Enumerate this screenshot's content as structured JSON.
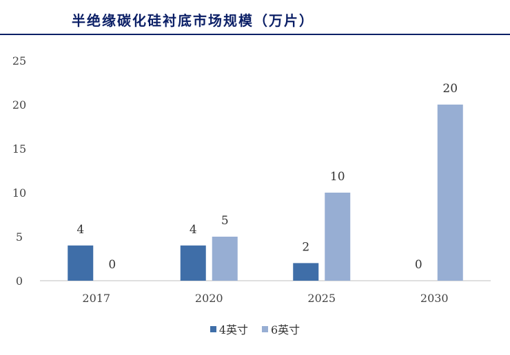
{
  "title": "半绝缘碳化硅衬底市场规模（万片）",
  "chart_data": {
    "type": "bar",
    "categories": [
      "2017",
      "2020",
      "2025",
      "2030"
    ],
    "series": [
      {
        "name": "4英寸",
        "values": [
          4,
          4,
          2,
          0
        ],
        "color": "#3f6ea8"
      },
      {
        "name": "6英寸",
        "values": [
          0,
          5,
          10,
          20
        ],
        "color": "#97aed3"
      }
    ],
    "ylim": [
      0,
      25
    ],
    "yticks": [
      0,
      5,
      10,
      15,
      20,
      25
    ],
    "grid": false,
    "legend_position": "bottom"
  }
}
